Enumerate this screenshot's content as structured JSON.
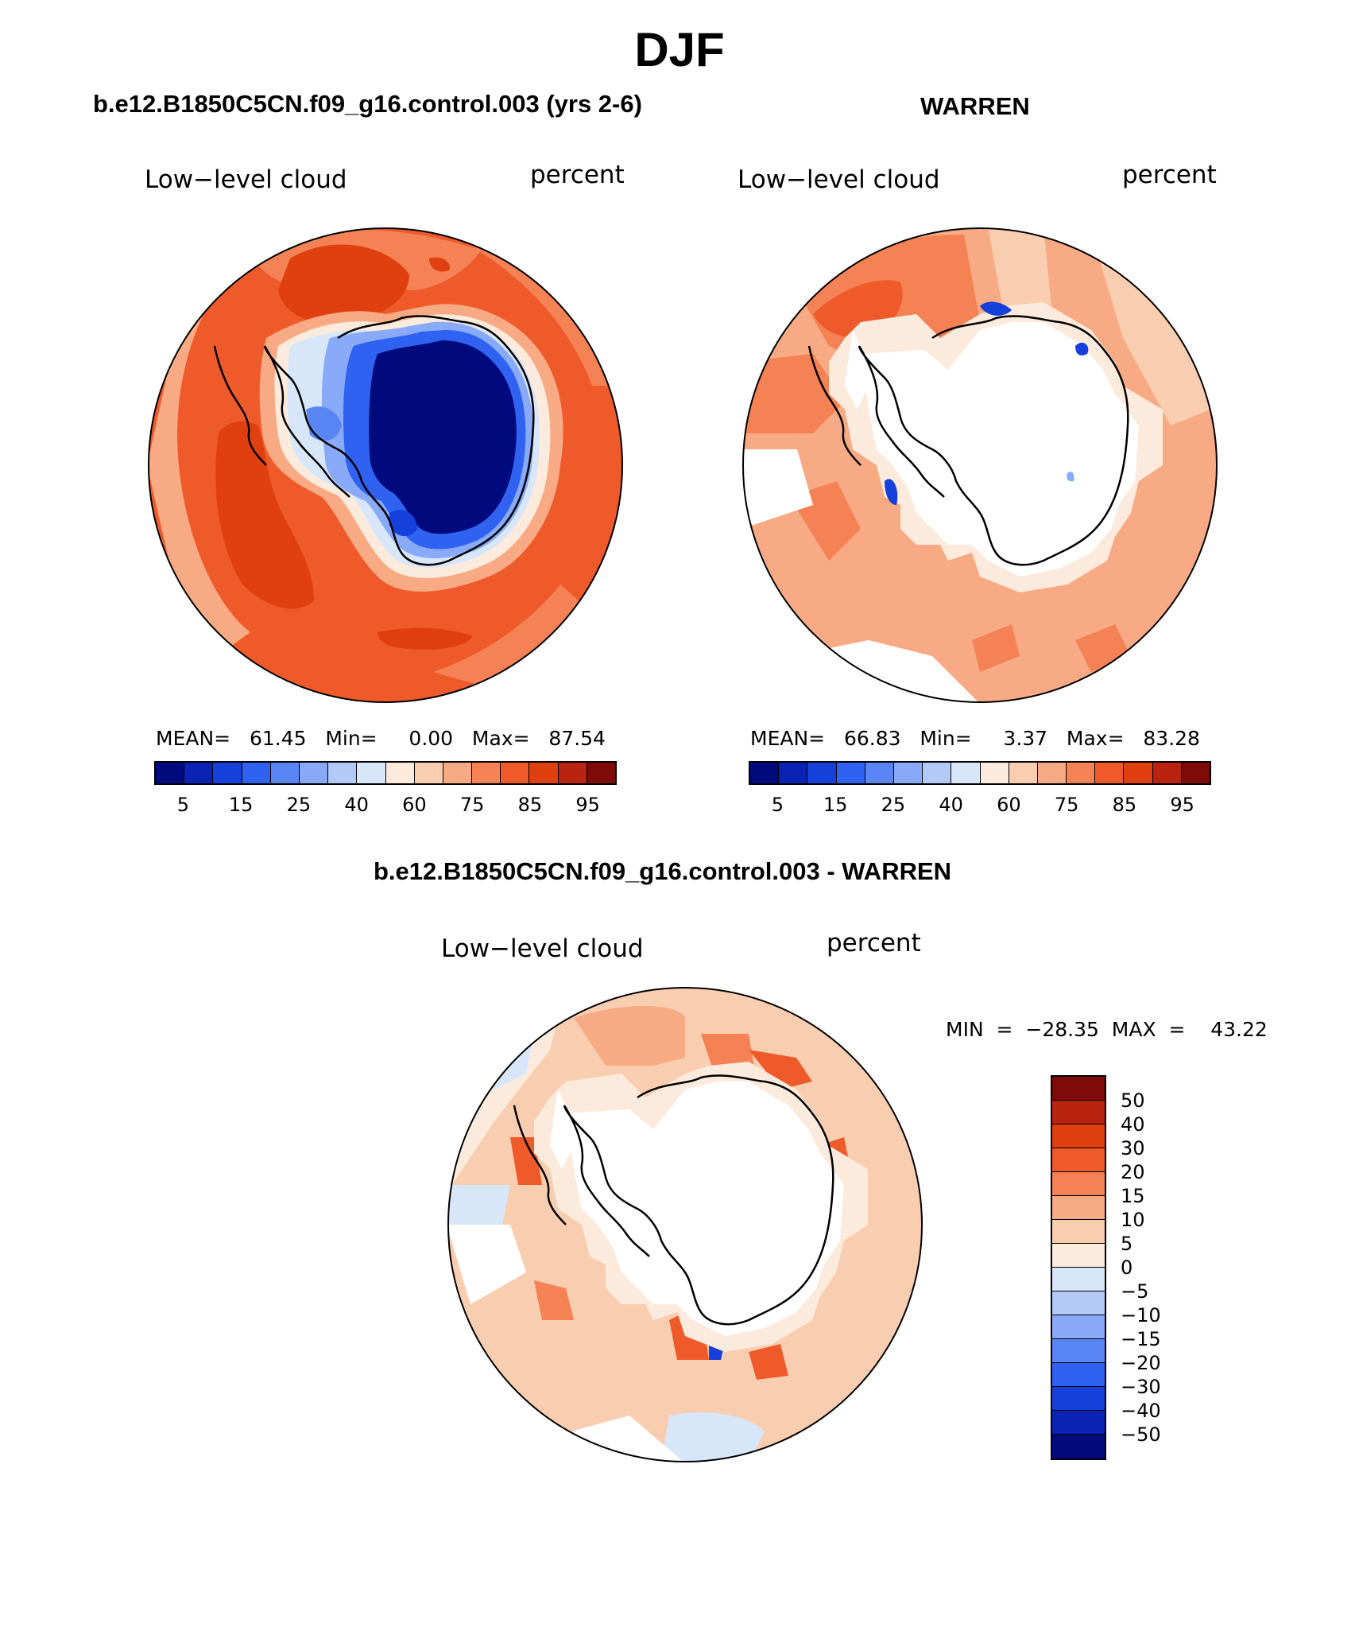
{
  "title": "DJF",
  "panels": {
    "left": {
      "header": "b.e12.B1850C5CN.f09_g16.control.003 (yrs 2-6)",
      "field": "Low−level cloud",
      "units": "percent",
      "stats": "MEAN=   61.45   Min=     0.00   Max=   87.54"
    },
    "right": {
      "header": "WARREN",
      "field": "Low−level cloud",
      "units": "percent",
      "stats": "MEAN=   66.83   Min=     3.37   Max=   83.28"
    },
    "diff": {
      "header": "b.e12.B1850C5CN.f09_g16.control.003 - WARREN",
      "field": "Low−level cloud",
      "units": "percent",
      "stats": "MIN  =  −28.35  MAX  =    43.22"
    }
  },
  "colorbar_main": {
    "colors": [
      "#000a7d",
      "#0a23b4",
      "#1540dc",
      "#2f62f0",
      "#5a86f5",
      "#88aaf8",
      "#b3caf9",
      "#d8e6fa",
      "#fcebdc",
      "#f9cdb0",
      "#f7aa83",
      "#f48255",
      "#ef5a2b",
      "#e0400f",
      "#b82410",
      "#7e0a0a"
    ],
    "labels": [
      "5",
      "15",
      "25",
      "40",
      "60",
      "75",
      "85",
      "95"
    ]
  },
  "colorbar_diff": {
    "colors": [
      "#7e0a0a",
      "#b82410",
      "#e0400f",
      "#ef5a2b",
      "#f48255",
      "#f7aa83",
      "#f9cdb0",
      "#fcebdc",
      "#d8e6fa",
      "#b3caf9",
      "#88aaf8",
      "#5a86f5",
      "#2f62f0",
      "#1540dc",
      "#0a23b4",
      "#000a7d"
    ],
    "labels": [
      "50",
      "40",
      "30",
      "20",
      "15",
      "10",
      "5",
      "0",
      "−5",
      "−10",
      "−15",
      "−20",
      "−30",
      "−40",
      "−50"
    ]
  }
}
